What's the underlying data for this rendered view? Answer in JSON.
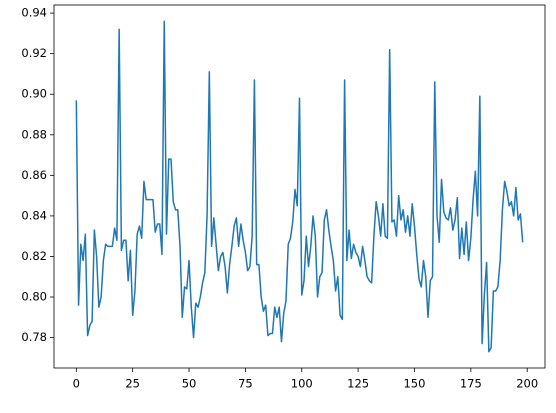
{
  "chart_data": {
    "type": "line",
    "x": [
      0,
      1,
      2,
      3,
      4,
      5,
      6,
      7,
      8,
      9,
      10,
      11,
      12,
      13,
      14,
      15,
      16,
      17,
      18,
      19,
      20,
      21,
      22,
      23,
      24,
      25,
      26,
      27,
      28,
      29,
      30,
      31,
      32,
      33,
      34,
      35,
      36,
      37,
      38,
      39,
      40,
      41,
      42,
      43,
      44,
      45,
      46,
      47,
      48,
      49,
      50,
      51,
      52,
      53,
      54,
      55,
      56,
      57,
      58,
      59,
      60,
      61,
      62,
      63,
      64,
      65,
      66,
      67,
      68,
      69,
      70,
      71,
      72,
      73,
      74,
      75,
      76,
      77,
      78,
      79,
      80,
      81,
      82,
      83,
      84,
      85,
      86,
      87,
      88,
      89,
      90,
      91,
      92,
      93,
      94,
      95,
      96,
      97,
      98,
      99,
      100,
      101,
      102,
      103,
      104,
      105,
      106,
      107,
      108,
      109,
      110,
      111,
      112,
      113,
      114,
      115,
      116,
      117,
      118,
      119,
      120,
      121,
      122,
      123,
      124,
      125,
      126,
      127,
      128,
      129,
      130,
      131,
      132,
      133,
      134,
      135,
      136,
      137,
      138,
      139,
      140,
      141,
      142,
      143,
      144,
      145,
      146,
      147,
      148,
      149,
      150,
      151,
      152,
      153,
      154,
      155,
      156,
      157,
      158,
      159,
      160,
      161,
      162,
      163,
      164,
      165,
      166,
      167,
      168,
      169,
      170,
      171,
      172,
      173,
      174,
      175,
      176,
      177,
      178,
      179,
      180,
      181,
      182,
      183,
      184,
      185,
      186,
      187,
      188,
      189,
      190,
      191,
      192,
      193,
      194,
      195,
      196,
      197,
      198
    ],
    "series": [
      {
        "color": "#1f77b4",
        "values": [
          0.897,
          0.796,
          0.826,
          0.818,
          0.831,
          0.781,
          0.786,
          0.788,
          0.833,
          0.82,
          0.795,
          0.8,
          0.818,
          0.826,
          0.825,
          0.825,
          0.825,
          0.834,
          0.828,
          0.932,
          0.823,
          0.828,
          0.828,
          0.808,
          0.823,
          0.791,
          0.803,
          0.831,
          0.835,
          0.829,
          0.857,
          0.848,
          0.848,
          0.848,
          0.848,
          0.832,
          0.836,
          0.836,
          0.821,
          0.936,
          0.831,
          0.868,
          0.868,
          0.847,
          0.843,
          0.843,
          0.825,
          0.79,
          0.805,
          0.804,
          0.818,
          0.795,
          0.78,
          0.797,
          0.795,
          0.8,
          0.807,
          0.812,
          0.84,
          0.911,
          0.825,
          0.839,
          0.826,
          0.813,
          0.82,
          0.822,
          0.815,
          0.802,
          0.816,
          0.825,
          0.835,
          0.839,
          0.825,
          0.836,
          0.828,
          0.822,
          0.813,
          0.815,
          0.83,
          0.907,
          0.816,
          0.816,
          0.8,
          0.793,
          0.796,
          0.781,
          0.782,
          0.782,
          0.795,
          0.79,
          0.795,
          0.778,
          0.792,
          0.798,
          0.826,
          0.829,
          0.837,
          0.853,
          0.845,
          0.898,
          0.801,
          0.808,
          0.83,
          0.815,
          0.825,
          0.84,
          0.83,
          0.8,
          0.81,
          0.812,
          0.838,
          0.843,
          0.833,
          0.825,
          0.818,
          0.803,
          0.81,
          0.791,
          0.789,
          0.907,
          0.818,
          0.833,
          0.819,
          0.826,
          0.822,
          0.82,
          0.815,
          0.825,
          0.818,
          0.81,
          0.808,
          0.807,
          0.83,
          0.847,
          0.84,
          0.83,
          0.846,
          0.83,
          0.829,
          0.922,
          0.837,
          0.838,
          0.83,
          0.85,
          0.838,
          0.843,
          0.832,
          0.84,
          0.83,
          0.846,
          0.835,
          0.821,
          0.809,
          0.805,
          0.818,
          0.81,
          0.79,
          0.808,
          0.81,
          0.906,
          0.84,
          0.827,
          0.858,
          0.842,
          0.839,
          0.838,
          0.844,
          0.833,
          0.838,
          0.849,
          0.819,
          0.834,
          0.821,
          0.837,
          0.818,
          0.829,
          0.848,
          0.862,
          0.84,
          0.899,
          0.777,
          0.801,
          0.817,
          0.773,
          0.775,
          0.803,
          0.803,
          0.805,
          0.818,
          0.843,
          0.857,
          0.852,
          0.845,
          0.847,
          0.84,
          0.854,
          0.838,
          0.841,
          0.827
        ]
      }
    ],
    "xlim": [
      -9.9,
      207.9
    ],
    "ylim": [
      0.765,
      0.944
    ],
    "xticks": [
      0,
      25,
      50,
      75,
      100,
      125,
      150,
      175,
      200
    ],
    "yticks": [
      0.78,
      {
        "value": 0.8,
        "label": "0.80"
      },
      0.82,
      0.84,
      0.86,
      0.88,
      {
        "value": 0.9,
        "label": "0.90"
      },
      0.92,
      0.94
    ]
  }
}
